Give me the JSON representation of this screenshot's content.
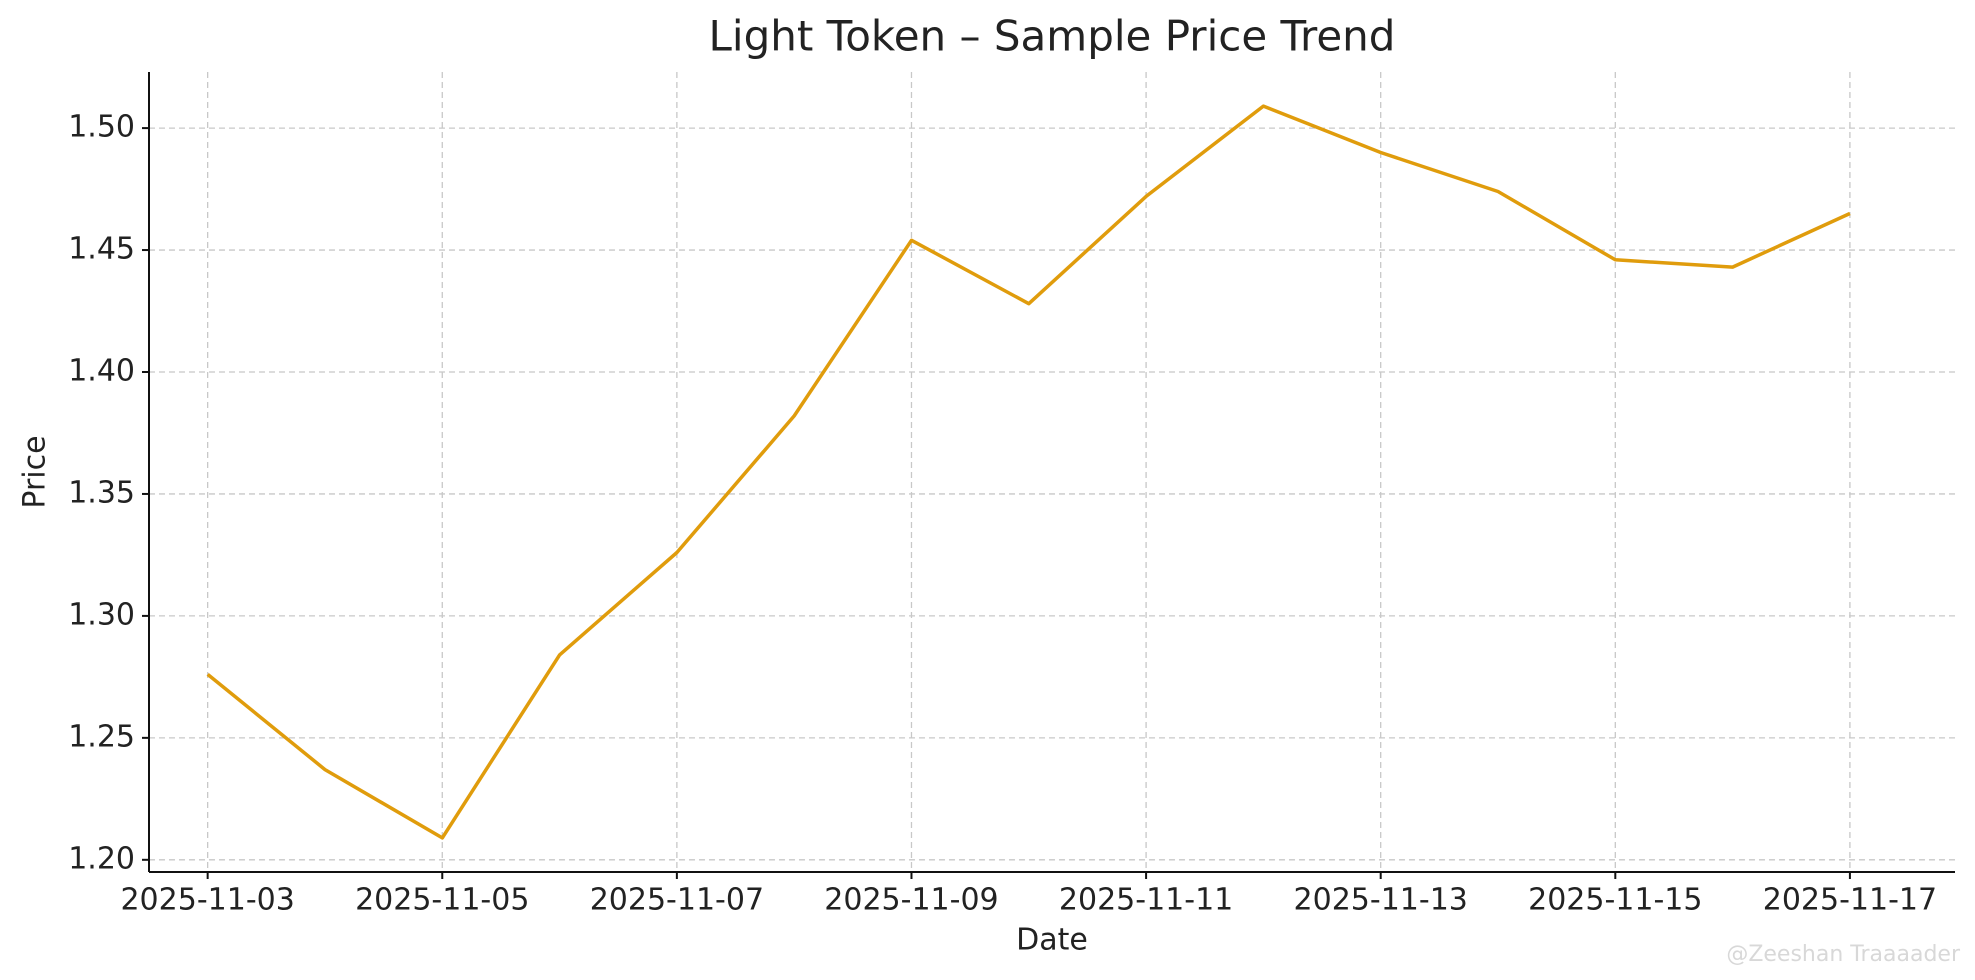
{
  "chart_data": {
    "type": "line",
    "title": "Light Token – Sample Price Trend",
    "x_label": "Date",
    "y_label": "Price",
    "watermark": "@Zeeshan Traaaader",
    "x": [
      "2025-11-03",
      "2025-11-04",
      "2025-11-05",
      "2025-11-06",
      "2025-11-07",
      "2025-11-08",
      "2025-11-09",
      "2025-11-10",
      "2025-11-11",
      "2025-11-12",
      "2025-11-13",
      "2025-11-14",
      "2025-11-15",
      "2025-11-16",
      "2025-11-17"
    ],
    "series": [
      {
        "name": "Price",
        "color": "#e09c0c",
        "values": [
          1.276,
          1.237,
          1.209,
          1.284,
          1.326,
          1.382,
          1.454,
          1.428,
          1.472,
          1.509,
          1.49,
          1.474,
          1.446,
          1.443,
          1.465
        ]
      }
    ],
    "xlim": [
      "2025-11-02T12:00",
      "2025-11-17T21:30"
    ],
    "xticks": [
      "2025-11-03",
      "2025-11-05",
      "2025-11-07",
      "2025-11-09",
      "2025-11-11",
      "2025-11-13",
      "2025-11-15",
      "2025-11-17"
    ],
    "ylim": [
      1.195,
      1.523
    ],
    "yticks": [
      {
        "value": 1.2,
        "label": "1.20"
      },
      1.25,
      {
        "value": 1.3,
        "label": "1.30"
      },
      1.35,
      {
        "value": 1.4,
        "label": "1.40"
      },
      1.45,
      {
        "value": 1.5,
        "label": "1.50"
      }
    ],
    "grid": true
  }
}
